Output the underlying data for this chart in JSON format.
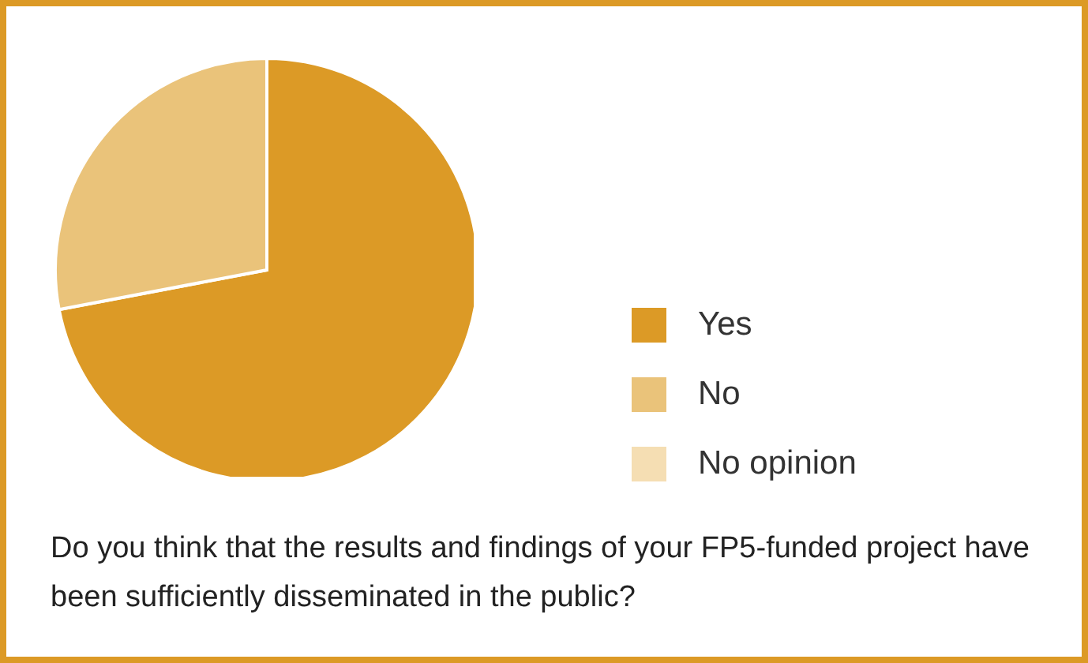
{
  "chart_data": {
    "type": "pie",
    "title": "Do you think that the results and findings of your FP5-funded project have been sufficiently disseminated in the public?",
    "categories": [
      "Yes",
      "No",
      "No opinion"
    ],
    "values": [
      72,
      28,
      0
    ],
    "colors": [
      "#dc9a26",
      "#eac37a",
      "#f5deb3"
    ],
    "legend": "right"
  }
}
